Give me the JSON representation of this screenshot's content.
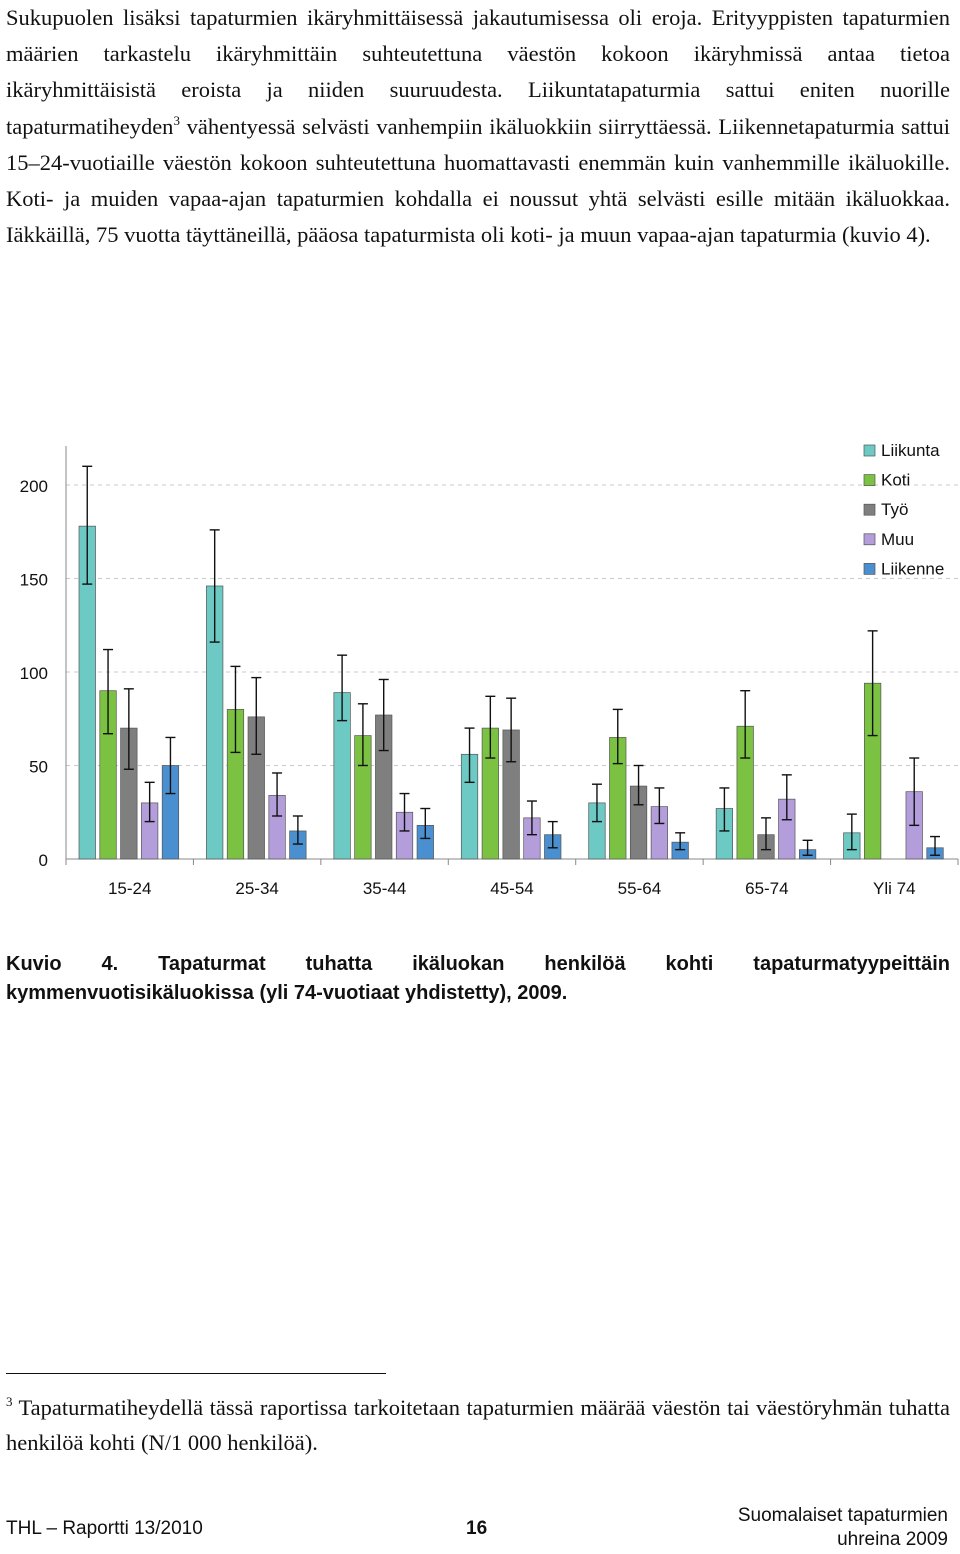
{
  "body_text": {
    "before_sup": "Sukupuolen lisäksi tapaturmien ikäryhmittäisessä jakautumisessa oli eroja. Erityyppisten tapaturmien määrien tarkastelu ikäryhmittäin suhteutettuna väestön kokoon ikäryhmissä antaa tietoa ikäryhmittäisistä eroista ja niiden suuruudesta. Liikuntatapaturmia sattui eniten nuorille tapaturmatiheyden",
    "sup": "3",
    "after_sup": " vähentyessä selvästi vanhempiin ikäluokkiin siirryttäessä. Liikennetapaturmia sattui 15–24-vuotiaille väestön kokoon suhteutettuna huomattavasti enemmän kuin vanhemmille ikäluokille. Koti- ja muiden vapaa-ajan tapaturmien kohdalla ei noussut yhtä selvästi esille mitään ikäluokkaa. Iäkkäillä, 75 vuotta täyttäneillä, pääosa tapaturmista oli koti- ja muun vapaa-ajan tapaturmia (kuvio 4)."
  },
  "chart_data": {
    "type": "bar",
    "title": "",
    "xlabel": "",
    "ylabel": "",
    "ylim": [
      0,
      200
    ],
    "yticks": [
      "0",
      "50",
      "100",
      "150",
      "200"
    ],
    "grid": true,
    "legend_position": "top-right",
    "error_bars": true,
    "categories": [
      "15-24",
      "25-34",
      "35-44",
      "45-54",
      "55-64",
      "65-74",
      "Yli 74"
    ],
    "series": [
      {
        "name": "Liikunta",
        "color": "#6cc9c4",
        "values": [
          178,
          146,
          89,
          56,
          30,
          27,
          14
        ],
        "err_low": [
          147,
          116,
          74,
          41,
          20,
          15,
          5
        ],
        "err_high": [
          210,
          176,
          109,
          70,
          40,
          38,
          24
        ]
      },
      {
        "name": "Koti",
        "color": "#7cc242",
        "values": [
          90,
          80,
          66,
          70,
          65,
          71,
          94
        ],
        "err_low": [
          67,
          57,
          50,
          54,
          51,
          54,
          66
        ],
        "err_high": [
          112,
          103,
          83,
          87,
          80,
          90,
          122
        ]
      },
      {
        "name": "Työ",
        "color": "#7f7f7f",
        "values": [
          70,
          76,
          77,
          69,
          39,
          13,
          null
        ],
        "err_low": [
          48,
          56,
          58,
          52,
          29,
          5,
          null
        ],
        "err_high": [
          91,
          97,
          96,
          86,
          50,
          22,
          null
        ]
      },
      {
        "name": "Muu",
        "color": "#b39ddb",
        "values": [
          30,
          34,
          25,
          22,
          28,
          32,
          36
        ],
        "err_low": [
          20,
          23,
          15,
          13,
          19,
          21,
          18
        ],
        "err_high": [
          41,
          46,
          35,
          31,
          38,
          45,
          54
        ]
      },
      {
        "name": "Liikenne",
        "color": "#4a8fd0",
        "values": [
          50,
          15,
          18,
          13,
          9,
          5,
          6
        ],
        "err_low": [
          35,
          8,
          11,
          6,
          5,
          2,
          2
        ],
        "err_high": [
          65,
          23,
          27,
          20,
          14,
          10,
          12
        ]
      }
    ]
  },
  "caption": "Kuvio 4. Tapaturmat tuhatta ikäluokan henkilöä kohti tapaturmatyypeittäin kymmenvuotisikäluokissa (yli 74-vuotiaat yhdistetty), 2009.",
  "footnote": {
    "marker": "3",
    "text": "Tapaturmatiheydellä tässä raportissa tarkoitetaan tapaturmien määrää väestön tai väestöryhmän tuhatta henkilöä kohti (N/1 000 henkilöä)."
  },
  "footer": {
    "left": "THL  – Raportti 13/2010",
    "page": "16",
    "right_line1": "Suomalaiset tapaturmien",
    "right_line2": "uhreina 2009"
  }
}
